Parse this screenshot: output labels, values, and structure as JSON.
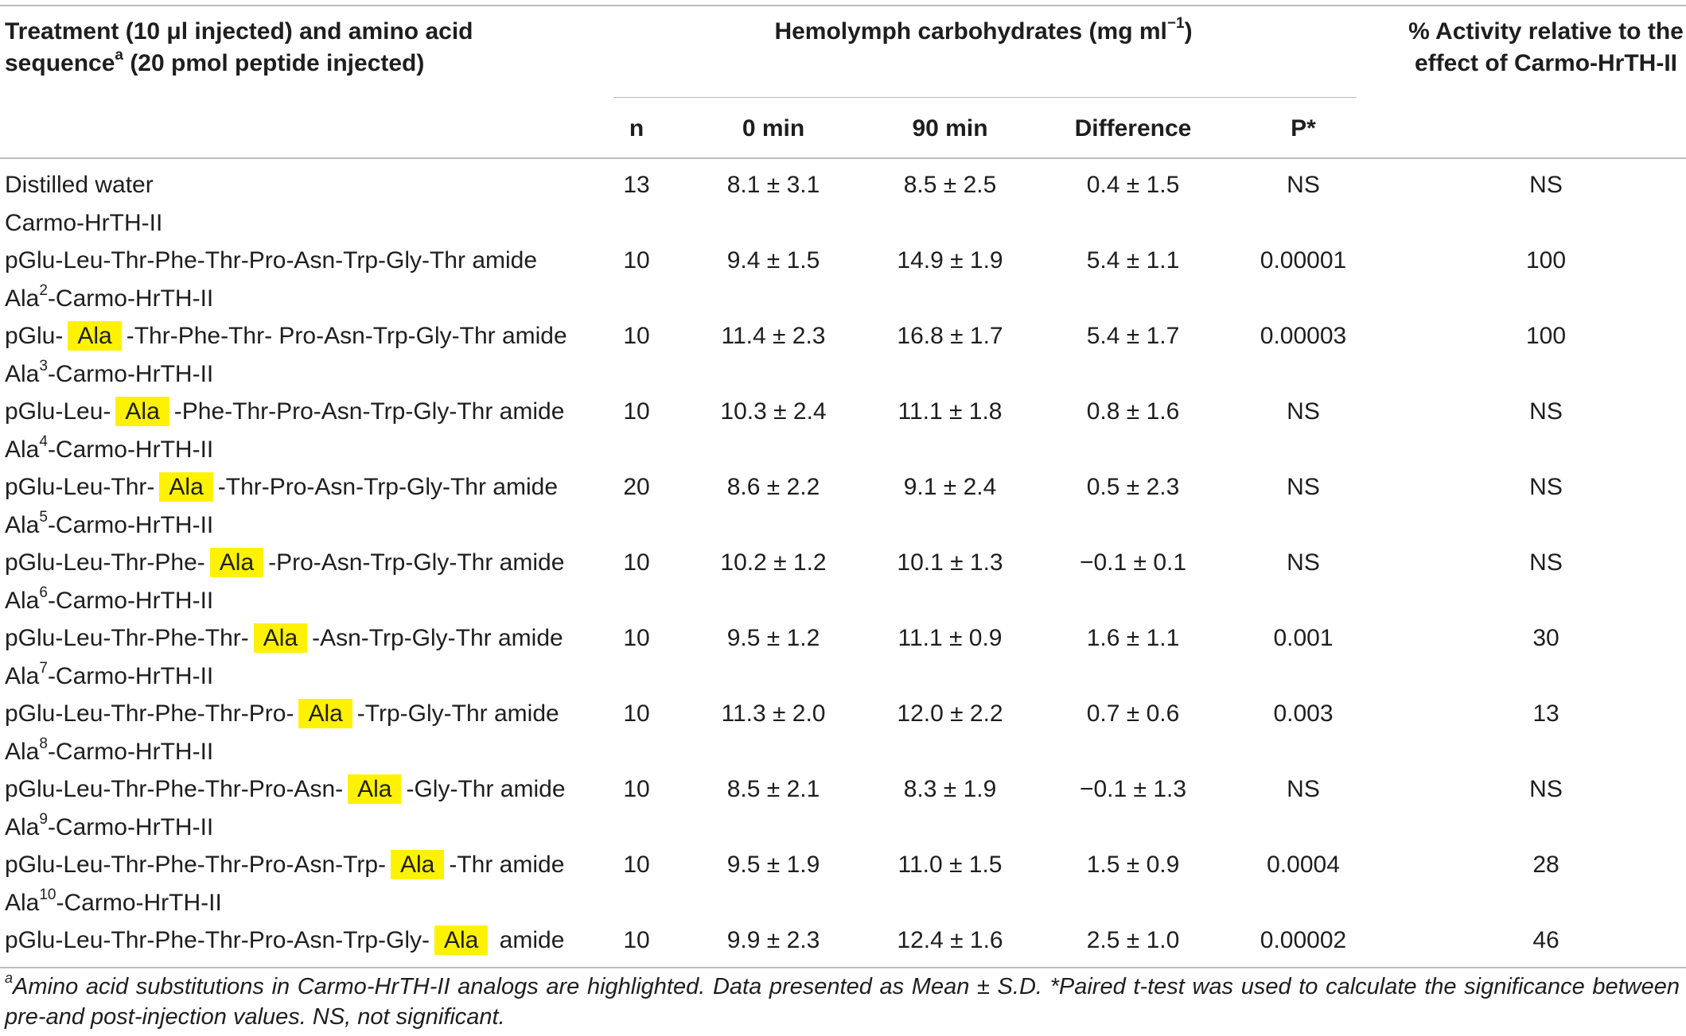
{
  "header": {
    "treatment_line1": "Treatment (10 μl injected) and amino acid",
    "treatment_line2_pre": "sequence",
    "treatment_line2_sup": "a",
    "treatment_line2_post": " (20 pmol peptide injected)",
    "hemolymph_pre": "Hemolymph carbohydrates (mg ml",
    "hemolymph_sup": "−1",
    "hemolymph_post": ")",
    "activity_line1": "% Activity relative to the",
    "activity_line2": "effect of Carmo-HrTH-II",
    "col_n": "n",
    "col_0min": "0 min",
    "col_90min": "90 min",
    "col_diff": "Difference",
    "col_p": "P*"
  },
  "rows": [
    {
      "label_pre": "Distilled water",
      "n": "13",
      "t0": "8.1 ± 3.1",
      "t90": "8.5 ± 2.5",
      "diff": "0.4 ± 1.5",
      "p": "NS",
      "activity": "NS"
    },
    {
      "name_pre": "Carmo-HrTH-II",
      "seq_pre": "pGlu-Leu-Thr-Phe-Thr-Pro-Asn-Trp-Gly-Thr amide",
      "n": "10",
      "t0": "9.4 ± 1.5",
      "t90": "14.9 ± 1.9",
      "diff": "5.4 ± 1.1",
      "p": "0.00001",
      "activity": "100"
    },
    {
      "name_pre": "Ala",
      "name_sup": "2",
      "name_post": "-Carmo-HrTH-II",
      "seq_pre": "pGlu-",
      "seq_hl": "Ala",
      "seq_post": "-Thr-Phe-Thr- Pro-Asn-Trp-Gly-Thr amide",
      "n": "10",
      "t0": "11.4 ± 2.3",
      "t90": "16.8 ± 1.7",
      "diff": "5.4 ± 1.7",
      "p": "0.00003",
      "activity": "100"
    },
    {
      "name_pre": "Ala",
      "name_sup": "3",
      "name_post": "-Carmo-HrTH-II",
      "seq_pre": "pGlu-Leu-",
      "seq_hl": "Ala",
      "seq_post": "-Phe-Thr-Pro-Asn-Trp-Gly-Thr amide",
      "n": "10",
      "t0": "10.3 ± 2.4",
      "t90": "11.1 ± 1.8",
      "diff": "0.8 ± 1.6",
      "p": "NS",
      "activity": "NS"
    },
    {
      "name_pre": "Ala",
      "name_sup": "4",
      "name_post": "-Carmo-HrTH-II",
      "seq_pre": "pGlu-Leu-Thr-",
      "seq_hl": "Ala",
      "seq_post": "-Thr-Pro-Asn-Trp-Gly-Thr amide",
      "n": "20",
      "t0": "8.6 ± 2.2",
      "t90": "9.1 ± 2.4",
      "diff": "0.5 ± 2.3",
      "p": "NS",
      "activity": "NS"
    },
    {
      "name_pre": "Ala",
      "name_sup": "5",
      "name_post": "-Carmo-HrTH-II",
      "seq_pre": "pGlu-Leu-Thr-Phe-",
      "seq_hl": "Ala",
      "seq_post": "-Pro-Asn-Trp-Gly-Thr amide",
      "n": "10",
      "t0": "10.2 ± 1.2",
      "t90": "10.1 ± 1.3",
      "diff": "−0.1 ± 0.1",
      "p": "NS",
      "activity": "NS"
    },
    {
      "name_pre": "Ala",
      "name_sup": "6",
      "name_post": "-Carmo-HrTH-II",
      "seq_pre": "pGlu-Leu-Thr-Phe-Thr-",
      "seq_hl": "Ala",
      "seq_post": "-Asn-Trp-Gly-Thr amide",
      "n": "10",
      "t0": "9.5 ± 1.2",
      "t90": "11.1 ± 0.9",
      "diff": "1.6 ± 1.1",
      "p": "0.001",
      "activity": "30"
    },
    {
      "name_pre": "Ala",
      "name_sup": "7",
      "name_post": "-Carmo-HrTH-II",
      "seq_pre": "pGlu-Leu-Thr-Phe-Thr-Pro-",
      "seq_hl": "Ala",
      "seq_post": "-Trp-Gly-Thr amide",
      "n": "10",
      "t0": "11.3 ± 2.0",
      "t90": "12.0 ± 2.2",
      "diff": "0.7 ± 0.6",
      "p": "0.003",
      "activity": "13"
    },
    {
      "name_pre": "Ala",
      "name_sup": "8",
      "name_post": "-Carmo-HrTH-II",
      "seq_pre": "pGlu-Leu-Thr-Phe-Thr-Pro-Asn-",
      "seq_hl": "Ala",
      "seq_post": "-Gly-Thr amide",
      "n": "10",
      "t0": "8.5 ± 2.1",
      "t90": "8.3 ± 1.9",
      "diff": "−0.1 ± 1.3",
      "p": "NS",
      "activity": "NS"
    },
    {
      "name_pre": "Ala",
      "name_sup": "9",
      "name_post": "-Carmo-HrTH-II",
      "seq_pre": "pGlu-Leu-Thr-Phe-Thr-Pro-Asn-Trp-",
      "seq_hl": "Ala",
      "seq_post": "-Thr amide",
      "n": "10",
      "t0": "9.5 ± 1.9",
      "t90": "11.0 ± 1.5",
      "diff": "1.5 ± 0.9",
      "p": "0.0004",
      "activity": "28"
    },
    {
      "name_pre": "Ala",
      "name_sup": "10",
      "name_post": "-Carmo-HrTH-II",
      "seq_pre": "pGlu-Leu-Thr-Phe-Thr-Pro-Asn-Trp-Gly-",
      "seq_hl": "Ala",
      "seq_post": " amide",
      "n": "10",
      "t0": "9.9 ± 2.3",
      "t90": "12.4 ± 1.6",
      "diff": "2.5 ± 1.0",
      "p": "0.00002",
      "activity": "46"
    }
  ],
  "footnote": {
    "sup": "a",
    "text": "Amino acid substitutions in Carmo-HrTH-II analogs are highlighted. Data presented as Mean ± S.D. *Paired t-test was used to calculate the significance between pre-and post-injection values. NS, not significant."
  },
  "colors": {
    "highlight": "#fff200",
    "rule": "#bdbdbd",
    "text": "#1e1e1e"
  }
}
